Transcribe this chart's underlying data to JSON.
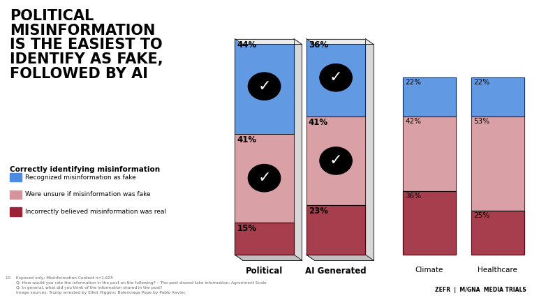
{
  "categories": [
    "Political",
    "AI Generated",
    "Climate",
    "Healthcare"
  ],
  "blue_vals": [
    44,
    36,
    22,
    22
  ],
  "pink_vals": [
    41,
    41,
    42,
    53
  ],
  "red_vals": [
    15,
    23,
    36,
    25
  ],
  "blue_color": "#4C8BE0",
  "pink_color": "#D4949A",
  "red_color": "#9B2335",
  "title_lines": [
    "POLITICAL",
    "MISINFORMATION",
    "IS THE EASIEST TO",
    "IDENTIFY AS FAKE,",
    "FOLLOWED BY AI"
  ],
  "subtitle": "Correctly identifying misinformation",
  "legend_labels": [
    "Recognized misinformation as fake",
    "Were unsure if misinformation was fake",
    "Incorrectly believed misinformation was real"
  ],
  "footnote1": "Exposed only; Misinformation Content n=1,625",
  "footnote2": "Q: How would you rate the information in the post on the following? – The post shared fake information; Agreement Scale",
  "footnote3": "Q: In general, what did you think of the information shared in the post?",
  "footnote4": "Image sources: Trump arrested by Elliot Higgins; Balenciaga Pope by Pablo Xavier.",
  "page_num": "10"
}
